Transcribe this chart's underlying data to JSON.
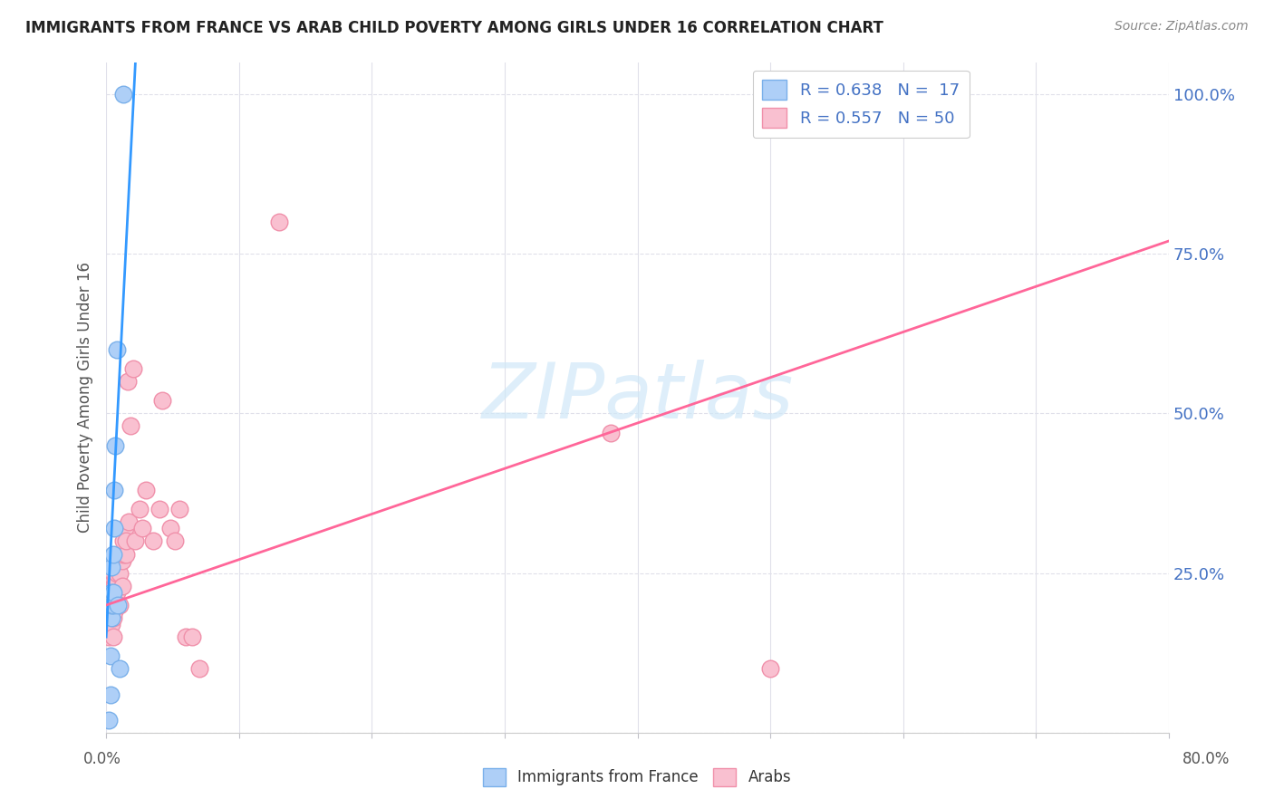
{
  "title": "IMMIGRANTS FROM FRANCE VS ARAB CHILD POVERTY AMONG GIRLS UNDER 16 CORRELATION CHART",
  "source": "Source: ZipAtlas.com",
  "ylabel": "Child Poverty Among Girls Under 16",
  "xlim": [
    0.0,
    0.8
  ],
  "ylim": [
    0.0,
    1.05
  ],
  "yticks": [
    0.0,
    0.25,
    0.5,
    0.75,
    1.0
  ],
  "ytick_labels": [
    "",
    "25.0%",
    "50.0%",
    "75.0%",
    "100.0%"
  ],
  "xticks": [
    0.0,
    0.1,
    0.2,
    0.3,
    0.4,
    0.5,
    0.6,
    0.7,
    0.8
  ],
  "blue_scatter_color": "#aecff7",
  "blue_scatter_edge": "#7ab0ea",
  "pink_scatter_color": "#f9c0d0",
  "pink_scatter_edge": "#f090aa",
  "blue_line_color": "#3399ff",
  "pink_line_color": "#ff6699",
  "watermark_color": "#d0e8f8",
  "watermark_text": "ZIPatlas",
  "legend1_text": "R = 0.638   N =  17",
  "legend2_text": "R = 0.557   N = 50",
  "legend_text_color": "#4472c4",
  "ytick_color": "#4472c4",
  "grid_color": "#e0e0ea",
  "title_color": "#222222",
  "source_color": "#888888",
  "blue_dots_x": [
    0.002,
    0.003,
    0.003,
    0.004,
    0.004,
    0.004,
    0.004,
    0.005,
    0.005,
    0.005,
    0.006,
    0.006,
    0.007,
    0.008,
    0.009,
    0.01,
    0.013
  ],
  "blue_dots_y": [
    0.02,
    0.06,
    0.12,
    0.18,
    0.2,
    0.22,
    0.26,
    0.2,
    0.22,
    0.28,
    0.32,
    0.38,
    0.45,
    0.6,
    0.2,
    0.1,
    1.0
  ],
  "blue_line_x0": 0.0,
  "blue_line_x1": 0.022,
  "blue_line_y0": 0.15,
  "blue_line_y1": 1.05,
  "pink_line_x0": 0.0,
  "pink_line_x1": 0.8,
  "pink_line_y0": 0.2,
  "pink_line_y1": 0.77,
  "pink_dots_x": [
    0.001,
    0.002,
    0.002,
    0.003,
    0.003,
    0.004,
    0.004,
    0.004,
    0.005,
    0.005,
    0.005,
    0.005,
    0.005,
    0.006,
    0.006,
    0.007,
    0.007,
    0.008,
    0.008,
    0.009,
    0.01,
    0.01,
    0.011,
    0.012,
    0.012,
    0.013,
    0.013,
    0.014,
    0.015,
    0.015,
    0.016,
    0.017,
    0.018,
    0.02,
    0.022,
    0.025,
    0.027,
    0.03,
    0.035,
    0.04,
    0.042,
    0.048,
    0.052,
    0.055,
    0.06,
    0.065,
    0.07,
    0.13,
    0.38,
    0.5
  ],
  "pink_dots_y": [
    0.18,
    0.15,
    0.2,
    0.22,
    0.19,
    0.17,
    0.2,
    0.22,
    0.15,
    0.18,
    0.2,
    0.23,
    0.25,
    0.19,
    0.23,
    0.2,
    0.24,
    0.22,
    0.25,
    0.27,
    0.2,
    0.25,
    0.28,
    0.23,
    0.27,
    0.28,
    0.3,
    0.32,
    0.28,
    0.3,
    0.55,
    0.33,
    0.48,
    0.57,
    0.3,
    0.35,
    0.32,
    0.38,
    0.3,
    0.35,
    0.52,
    0.32,
    0.3,
    0.35,
    0.15,
    0.15,
    0.1,
    0.8,
    0.47,
    0.1
  ]
}
